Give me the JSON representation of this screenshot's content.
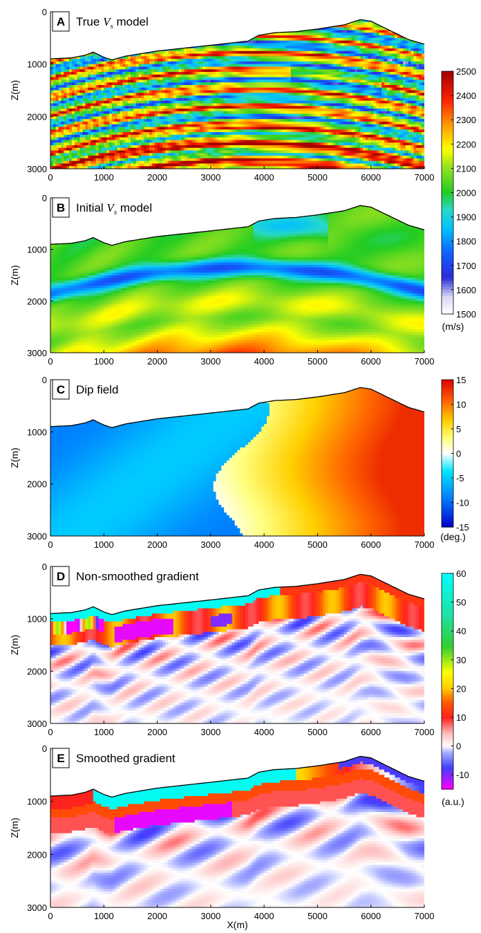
{
  "chart_data": [
    {
      "type": "heatmap",
      "letter": "A",
      "title": "True",
      "title_symbol": "V",
      "title_sub": "s",
      "title_suffix": "model",
      "ylabel": "Z(m)",
      "xticks": [
        0,
        1000,
        2000,
        3000,
        4000,
        5000,
        6000,
        7000
      ],
      "yticks": [
        0,
        1000,
        2000,
        3000
      ],
      "xlim": [
        0,
        7000
      ],
      "ylim": [
        3000,
        0
      ],
      "colormap": "jet-white",
      "field": "layered-velocity",
      "topography": [
        [
          0,
          900
        ],
        [
          400,
          880
        ],
        [
          650,
          830
        ],
        [
          800,
          770
        ],
        [
          1000,
          870
        ],
        [
          1150,
          920
        ],
        [
          1400,
          850
        ],
        [
          2000,
          750
        ],
        [
          3000,
          640
        ],
        [
          3700,
          560
        ],
        [
          3900,
          450
        ],
        [
          4200,
          400
        ],
        [
          4600,
          380
        ],
        [
          5000,
          330
        ],
        [
          5500,
          250
        ],
        [
          5800,
          150
        ],
        [
          6000,
          180
        ],
        [
          6400,
          380
        ],
        [
          6700,
          530
        ],
        [
          7000,
          620
        ]
      ]
    },
    {
      "type": "heatmap",
      "letter": "B",
      "title": "Initial",
      "title_symbol": "V",
      "title_sub": "s",
      "title_suffix": "model",
      "ylabel": "Z(m)",
      "xticks": [
        0,
        1000,
        2000,
        3000,
        4000,
        5000,
        6000,
        7000
      ],
      "yticks": [
        0,
        1000,
        2000,
        3000
      ],
      "xlim": [
        0,
        7000
      ],
      "ylim": [
        3000,
        0
      ],
      "colormap": "jet-white",
      "field": "smooth-velocity",
      "colorbar": {
        "ticks": [
          1500,
          1600,
          1700,
          1800,
          1900,
          2000,
          2100,
          2200,
          2300,
          2400,
          2500
        ],
        "range": [
          1500,
          2500
        ],
        "unit": "(m/s)"
      }
    },
    {
      "type": "heatmap",
      "letter": "C",
      "title": "Dip field",
      "ylabel": "Z(m)",
      "xticks": [
        0,
        1000,
        2000,
        3000,
        4000,
        5000,
        6000,
        7000
      ],
      "yticks": [
        0,
        1000,
        2000,
        3000
      ],
      "xlim": [
        0,
        7000
      ],
      "ylim": [
        3000,
        0
      ],
      "colormap": "jet-diverging",
      "field": "dip",
      "colorbar": {
        "ticks": [
          -15,
          -10,
          -5,
          0,
          5,
          10,
          15
        ],
        "range": [
          -15,
          15
        ],
        "unit": "(deg.)"
      }
    },
    {
      "type": "heatmap",
      "letter": "D",
      "title": "Non-smoothed gradient",
      "ylabel": "Z(m)",
      "xticks": [
        0,
        1000,
        2000,
        3000,
        4000,
        5000,
        6000,
        7000
      ],
      "yticks": [
        0,
        1000,
        2000,
        3000
      ],
      "xlim": [
        0,
        7000
      ],
      "ylim": [
        3000,
        0
      ],
      "colormap": "gradient",
      "field": "rough-gradient"
    },
    {
      "type": "heatmap",
      "letter": "E",
      "title": "Smoothed gradient",
      "ylabel": "Z(m)",
      "xlabel": "X(m)",
      "xticks": [
        0,
        1000,
        2000,
        3000,
        4000,
        5000,
        6000,
        7000
      ],
      "yticks": [
        0,
        1000,
        2000,
        3000
      ],
      "xlim": [
        0,
        7000
      ],
      "ylim": [
        3000,
        0
      ],
      "colormap": "gradient",
      "field": "smooth-gradient",
      "colorbar": {
        "ticks": [
          -10,
          0,
          10,
          20,
          30,
          40,
          50,
          60
        ],
        "range": [
          -15,
          60
        ],
        "unit": "(a.u.)"
      }
    }
  ]
}
